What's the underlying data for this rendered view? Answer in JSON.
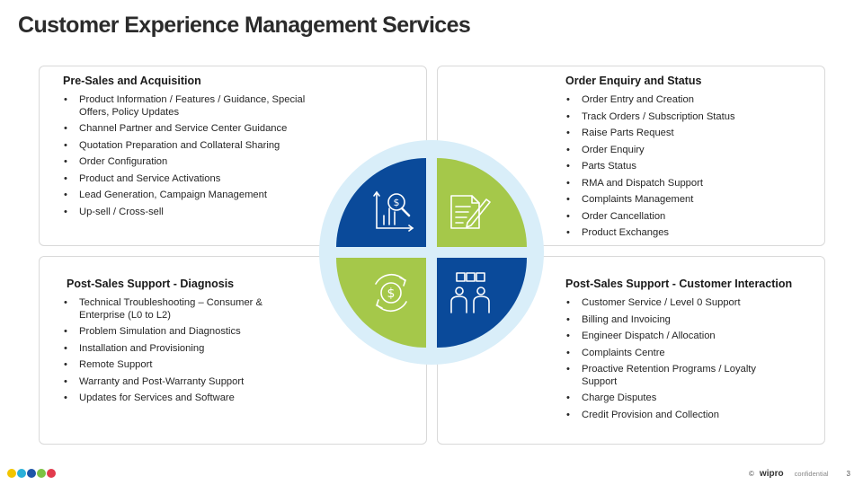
{
  "title": "Customer Experience Management Services",
  "quadrants": {
    "top_left": {
      "heading": "Pre-Sales and Acquisition",
      "items": [
        "Product Information / Features / Guidance, Special Offers, Policy Updates",
        "Channel Partner and Service Center Guidance",
        "Quotation Preparation and Collateral Sharing",
        "Order Configuration",
        "Product and Service Activations",
        "Lead Generation, Campaign Management",
        "Up-sell / Cross-sell"
      ]
    },
    "top_right": {
      "heading": "Order Enquiry and Status",
      "items": [
        "Order Entry and Creation",
        "Track Orders / Subscription Status",
        "Raise Parts Request",
        "Order Enquiry",
        "Parts Status",
        "RMA and Dispatch Support",
        "Complaints Management",
        "Order Cancellation",
        "Product Exchanges"
      ]
    },
    "bottom_left": {
      "heading": "Post-Sales Support - Diagnosis",
      "items": [
        "Technical Troubleshooting – Consumer & Enterprise (L0 to L2)",
        "Problem Simulation and Diagnostics",
        "Installation and Provisioning",
        "Remote Support",
        "Warranty and Post-Warranty Support",
        "Updates for Services and Software"
      ]
    },
    "bottom_right": {
      "heading": "Post-Sales Support - Customer Interaction",
      "items": [
        "Customer Service / Level 0 Support",
        "Billing and Invoicing",
        "Engineer Dispatch / Allocation",
        "Complaints Centre",
        "Proactive Retention Programs / Loyalty Support",
        "Charge Disputes",
        "Credit Provision and Collection"
      ]
    }
  },
  "colors": {
    "blue": "#0a4a9a",
    "green": "#a5c84a",
    "ring": "#d9eef9",
    "dots": [
      "#f2c500",
      "#2ab0d9",
      "#1e55a8",
      "#7cc243",
      "#e23b4d"
    ]
  },
  "icons": {
    "top_left": "chart-magnifier-dollar-icon",
    "top_right": "document-pen-icon",
    "bottom_left": "dollar-cycle-icon",
    "bottom_right": "people-puzzle-icon"
  },
  "footer": {
    "copyright": "©",
    "brand": "wipro",
    "confidential": "confidential",
    "page_number": "3"
  }
}
